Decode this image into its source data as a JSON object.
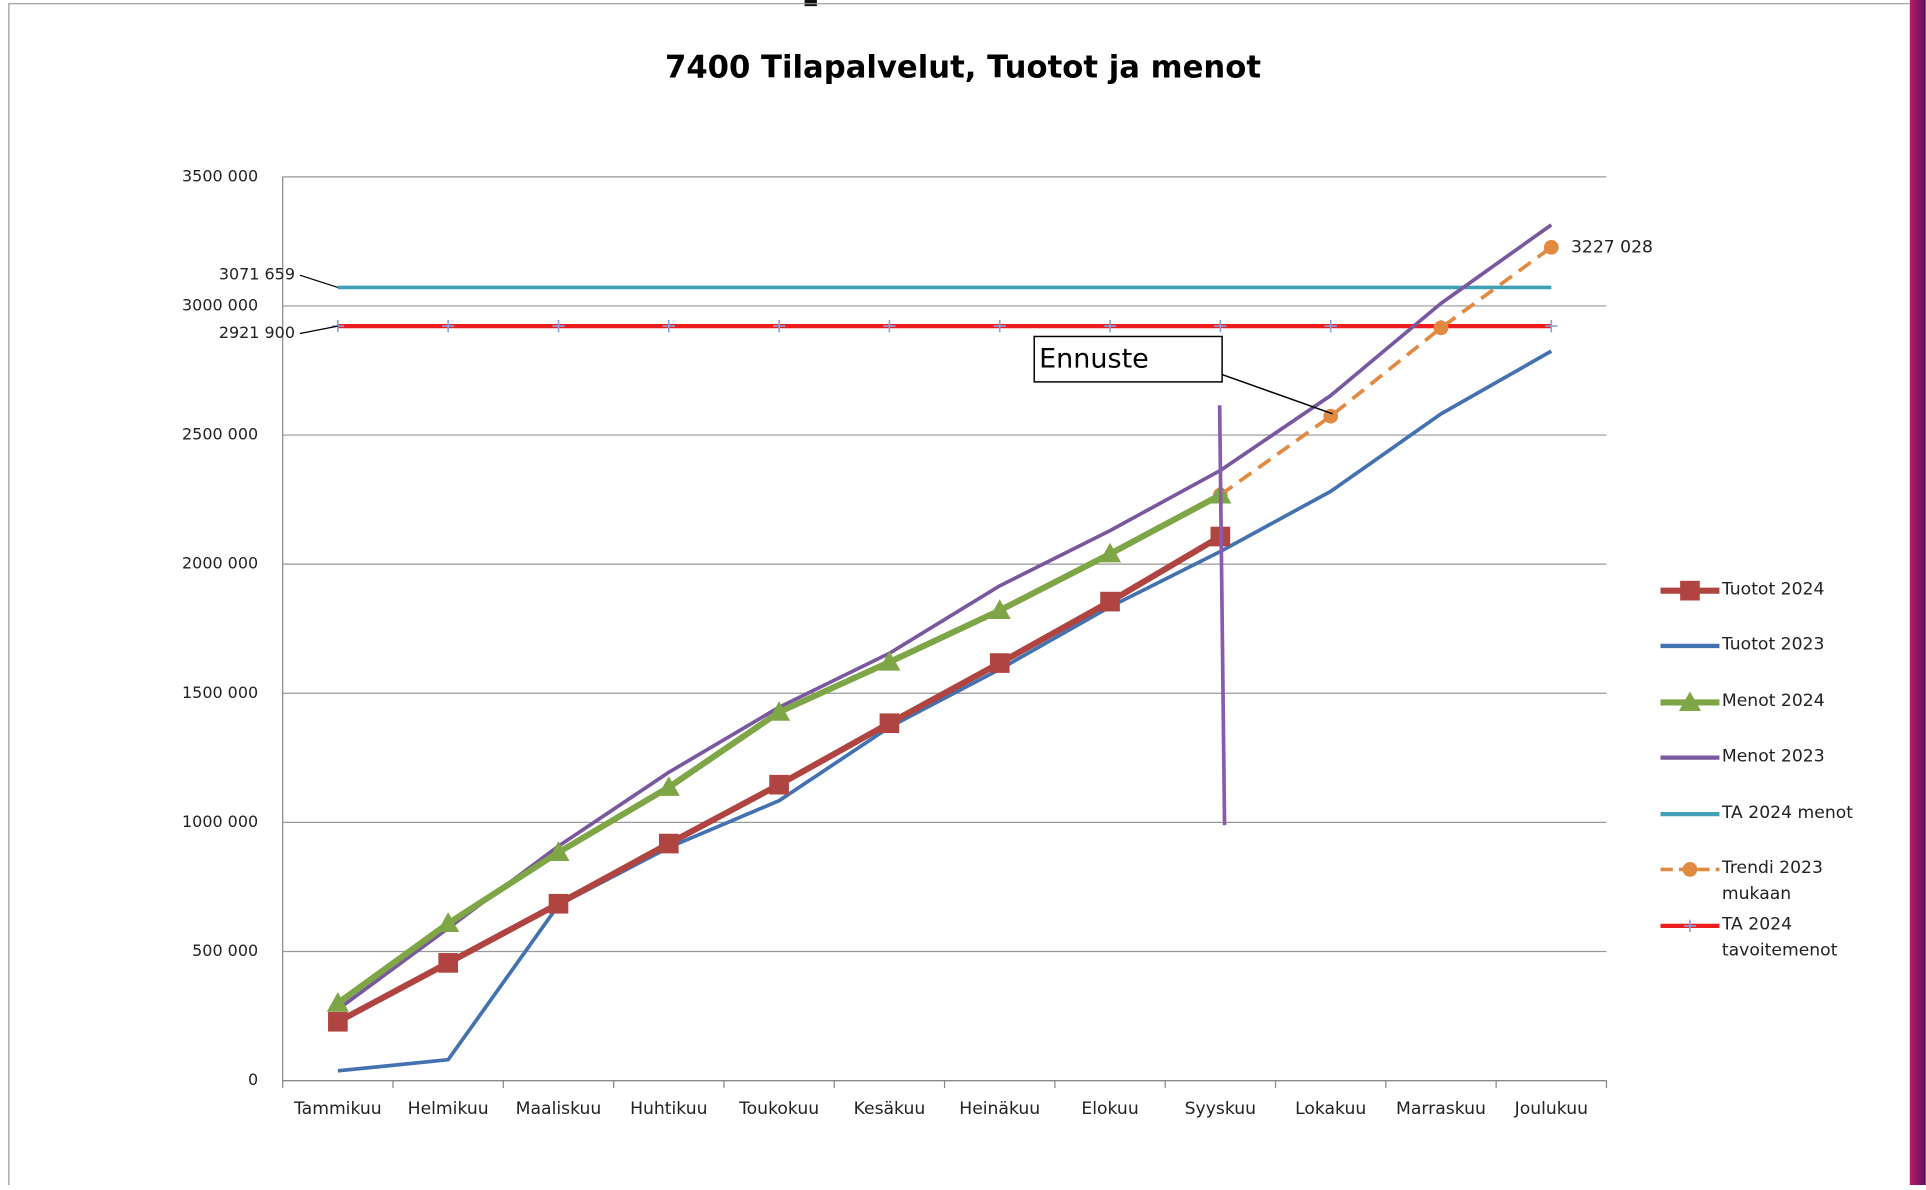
{
  "chart_data": {
    "type": "line",
    "title": "7400 Tilapalvelut, Tuotot ja menot",
    "categories": [
      "Tammikuu",
      "Helmikuu",
      "Maaliskuu",
      "Huhtikuu",
      "Toukokuu",
      "Kesäkuu",
      "Heinäkuu",
      "Elokuu",
      "Syyskuu",
      "Lokakuu",
      "Marraskuu",
      "Joulukuu"
    ],
    "ylim": [
      0,
      3500000
    ],
    "yticks": [
      0,
      {
        "value": 500000,
        "label": "500 000"
      },
      {
        "value": 1000000,
        "label": "1000 000"
      },
      {
        "value": 1500000,
        "label": "1500 000"
      },
      {
        "value": 2000000,
        "label": "2000 000"
      },
      {
        "value": 2500000,
        "label": "2500 000"
      },
      {
        "value": 3000000,
        "label": "3000 000"
      },
      {
        "value": 3500000,
        "label": "3500 000"
      }
    ],
    "grid": true,
    "legend": "right",
    "annotation": "Ennuste",
    "series": [
      {
        "name": "Tuotot 2024",
        "color": "#b04440",
        "marker": "square",
        "values": [
          228000,
          456000,
          685000,
          918000,
          1146000,
          1384000,
          1617000,
          1855000,
          2107000,
          null,
          null,
          null
        ]
      },
      {
        "name": "Tuotot 2023",
        "color": "#4472b0",
        "marker": null,
        "values": [
          38000,
          81000,
          680000,
          903000,
          1084000,
          1369000,
          1593000,
          1835000,
          2049000,
          2282000,
          2582000,
          2825000
        ]
      },
      {
        "name": "Menot 2024",
        "color": "#7fa646",
        "marker": "triangle",
        "values": [
          300000,
          609000,
          884000,
          1136000,
          1427000,
          1621000,
          1821000,
          2040000,
          2268000,
          null,
          null,
          null
        ]
      },
      {
        "name": "Menot 2023",
        "color": "#7a58a0",
        "marker": null,
        "values": [
          276000,
          590000,
          908000,
          1194000,
          1446000,
          1655000,
          1916000,
          2130000,
          2363000,
          2653000,
          3010000,
          3314000
        ]
      },
      {
        "name": "TA 2024 menot",
        "color": "#3fa0b8",
        "marker": null,
        "values": [
          3071659,
          3071659,
          3071659,
          3071659,
          3071659,
          3071659,
          3071659,
          3071659,
          3071659,
          3071659,
          3071659,
          3071659
        ],
        "value_labels": [
          "3071 659",
          null,
          null,
          null,
          null,
          null,
          null,
          null,
          null,
          null,
          null,
          null
        ]
      },
      {
        "name": "Trendi 2023 mukaan",
        "color": "#e28a40",
        "marker": "circle",
        "dashed": true,
        "values": [
          null,
          null,
          null,
          null,
          null,
          null,
          null,
          null,
          2268000,
          2573000,
          2915000,
          3227028
        ],
        "value_labels": [
          null,
          null,
          null,
          null,
          null,
          null,
          null,
          null,
          null,
          null,
          null,
          "3227 028"
        ]
      },
      {
        "name": "TA 2024 tavoitemenot",
        "color": "#ee1c1c",
        "marker": "plus",
        "values": [
          2921900,
          2921900,
          2921900,
          2921900,
          2921900,
          2921900,
          2921900,
          2921900,
          2921900,
          2921900,
          2921900,
          2921900
        ],
        "value_labels": [
          "2921 900",
          null,
          null,
          null,
          null,
          null,
          null,
          null,
          null,
          null,
          null,
          null
        ]
      }
    ]
  }
}
